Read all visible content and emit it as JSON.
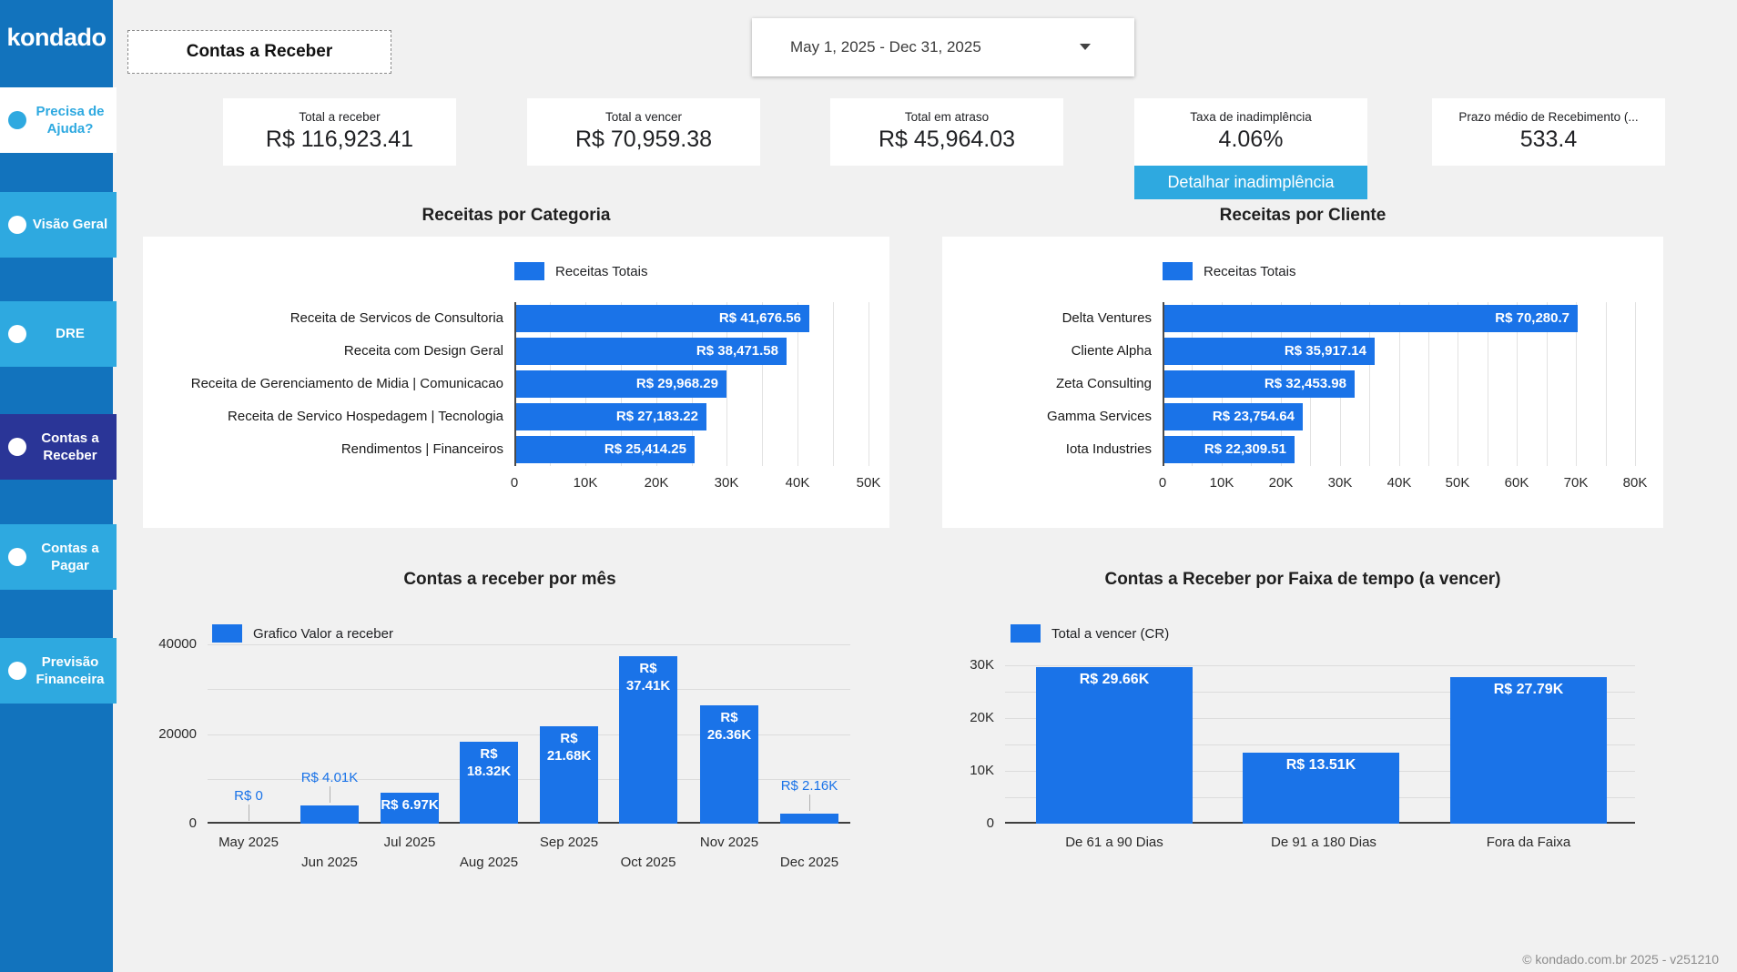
{
  "app": {
    "logo": "kondado",
    "footer": "© kondado.com.br 2025 - v251210",
    "colors": {
      "sidebar_blue": "#1273bd",
      "light_blue": "#2ea9e0",
      "active_navy": "#2a3597",
      "bar_blue": "#1a73e8",
      "page_bg": "#f1f1f1"
    }
  },
  "sidebar": {
    "items": [
      {
        "label": "Precisa de Ajuda?"
      },
      {
        "label": "Visão Geral"
      },
      {
        "label": "DRE"
      },
      {
        "label": "Contas a Receber"
      },
      {
        "label": "Contas a Pagar"
      },
      {
        "label": "Previsão Financeira"
      }
    ]
  },
  "header": {
    "title": "Contas a Receber",
    "date_range": "May 1, 2025 - Dec 31, 2025"
  },
  "kpis": [
    {
      "label": "Total a receber",
      "value": "R$ 116,923.41"
    },
    {
      "label": "Total a vencer",
      "value": "R$ 70,959.38"
    },
    {
      "label": "Total em atraso",
      "value": "R$ 45,964.03"
    },
    {
      "label": "Taxa de inadimplência",
      "value": "4.06%"
    },
    {
      "label": "Prazo médio de Recebimento (...",
      "value": "533.4"
    }
  ],
  "buttons": {
    "detail_delinquency": "Detalhar inadimplência"
  },
  "chart_data": [
    {
      "id": "receitas-por-categoria",
      "type": "bar",
      "orientation": "horizontal",
      "title": "Receitas por Categoria",
      "legend": "Receitas Totais",
      "categories": [
        "Receita de Servicos de Consultoria",
        "Receita com Design Geral",
        "Receita de Gerenciamento de Midia | Comunicacao",
        "Receita de Servico Hospedagem | Tecnologia",
        "Rendimentos | Financeiros"
      ],
      "values": [
        41676.56,
        38471.58,
        29968.29,
        27183.22,
        25414.25
      ],
      "value_labels": [
        "R$ 41,676.56",
        "R$ 38,471.58",
        "R$ 29,968.29",
        "R$ 27,183.22",
        "R$ 25,414.25"
      ],
      "xlim": [
        0,
        50000
      ],
      "ticks": [
        "0",
        "10K",
        "20K",
        "30K",
        "40K",
        "50K"
      ],
      "tick_step": 10000,
      "minor_step": 5000,
      "bar_color": "#1a73e8"
    },
    {
      "id": "receitas-por-cliente",
      "type": "bar",
      "orientation": "horizontal",
      "title": "Receitas por Cliente",
      "legend": "Receitas Totais",
      "categories": [
        "Delta Ventures",
        "Cliente Alpha",
        "Zeta Consulting",
        "Gamma Services",
        "Iota Industries"
      ],
      "values": [
        70280.7,
        35917.14,
        32453.98,
        23754.64,
        22309.51
      ],
      "value_labels": [
        "R$ 70,280.7",
        "R$ 35,917.14",
        "R$ 32,453.98",
        "R$ 23,754.64",
        "R$ 22,309.51"
      ],
      "xlim": [
        0,
        80000
      ],
      "ticks": [
        "0",
        "10K",
        "20K",
        "30K",
        "40K",
        "50K",
        "60K",
        "70K",
        "80K"
      ],
      "tick_step": 10000,
      "minor_step": 5000,
      "bar_color": "#1a73e8"
    },
    {
      "id": "contas-a-receber-por-mes",
      "type": "bar",
      "orientation": "vertical",
      "title": "Contas a receber por mês",
      "legend": "Grafico Valor a receber",
      "categories": [
        "May 2025",
        "Jun 2025",
        "Jul 2025",
        "Aug 2025",
        "Sep 2025",
        "Oct 2025",
        "Nov 2025",
        "Dec 2025"
      ],
      "values": [
        0,
        4010,
        6970,
        18320,
        21680,
        37410,
        26360,
        2160
      ],
      "value_labels": [
        "R$ 0",
        "R$ 4.01K",
        "R$ 6.97K",
        "R$\n18.32K",
        "R$\n21.68K",
        "R$\n37.41K",
        "R$\n26.36K",
        "R$ 2.16K"
      ],
      "label_placement": [
        "out",
        "out",
        "in",
        "in",
        "in",
        "in",
        "in",
        "out"
      ],
      "ylim": [
        0,
        40000
      ],
      "yticks": [
        {
          "v": 0,
          "label": "0"
        },
        {
          "v": 20000,
          "label": "20000"
        },
        {
          "v": 40000,
          "label": "40000"
        }
      ],
      "grid_values": [
        10000,
        20000,
        30000,
        40000
      ],
      "bar_color": "#1a73e8"
    },
    {
      "id": "contas-a-receber-por-faixa",
      "type": "bar",
      "orientation": "vertical",
      "title": "Contas a Receber por Faixa de tempo (a vencer)",
      "legend": "Total a vencer (CR)",
      "categories": [
        "De 61 a 90 Dias",
        "De 91 a 180 Dias",
        "Fora da Faixa"
      ],
      "values": [
        29660,
        13510,
        27790
      ],
      "value_labels": [
        "R$ 29.66K",
        "R$ 13.51K",
        "R$ 27.79K"
      ],
      "label_placement": [
        "in",
        "in",
        "in"
      ],
      "ylim": [
        0,
        30000
      ],
      "yticks": [
        {
          "v": 0,
          "label": "0"
        },
        {
          "v": 10000,
          "label": "10K"
        },
        {
          "v": 20000,
          "label": "20K"
        },
        {
          "v": 30000,
          "label": "30K"
        }
      ],
      "grid_values": [
        5000,
        10000,
        15000,
        20000,
        25000,
        30000
      ],
      "bar_color": "#1a73e8"
    }
  ]
}
